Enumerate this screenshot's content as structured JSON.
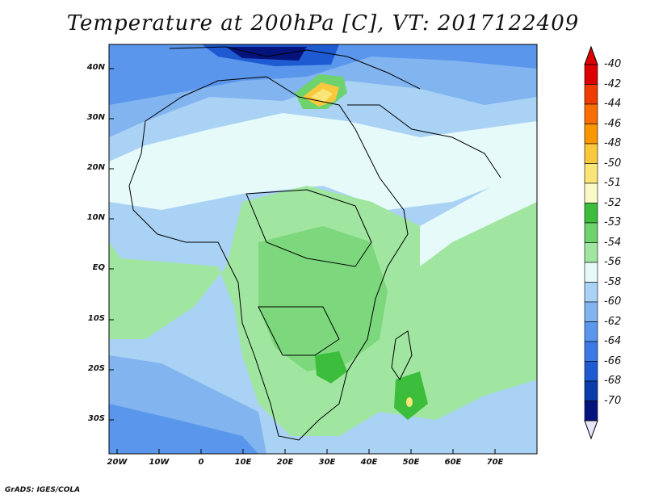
{
  "title": "Temperature at 200hPa [C], VT: 2017122409",
  "credit": "GrADS: IGES/COLA",
  "lat_labels": [
    "40N",
    "30N",
    "20N",
    "10N",
    "EQ",
    "10S",
    "20S",
    "30S"
  ],
  "lon_labels": [
    "20W",
    "10W",
    "0",
    "10E",
    "20E",
    "30E",
    "40E",
    "50E",
    "60E",
    "70E"
  ],
  "colorbar": {
    "labels": [
      "-40",
      "-42",
      "-44",
      "-46",
      "-48",
      "-50",
      "-51",
      "-52",
      "-53",
      "-54",
      "-56",
      "-58",
      "-60",
      "-62",
      "-64",
      "-66",
      "-68",
      "-70"
    ],
    "colors": [
      "#dc0000",
      "#f03c00",
      "#fa6e00",
      "#fa9600",
      "#fac83c",
      "#fae678",
      "#fafac8",
      "#3cbe3c",
      "#6ed26e",
      "#a0e6a0",
      "#e6fafa",
      "#aad2f5",
      "#82b4f0",
      "#5a96eb",
      "#3c78e6",
      "#1e5ad2",
      "#0a3caa",
      "#05147d",
      "#e6e6fa"
    ],
    "top_arrow_color": "#dc0000",
    "bottom_arrow_color": "#e6e6fa"
  }
}
